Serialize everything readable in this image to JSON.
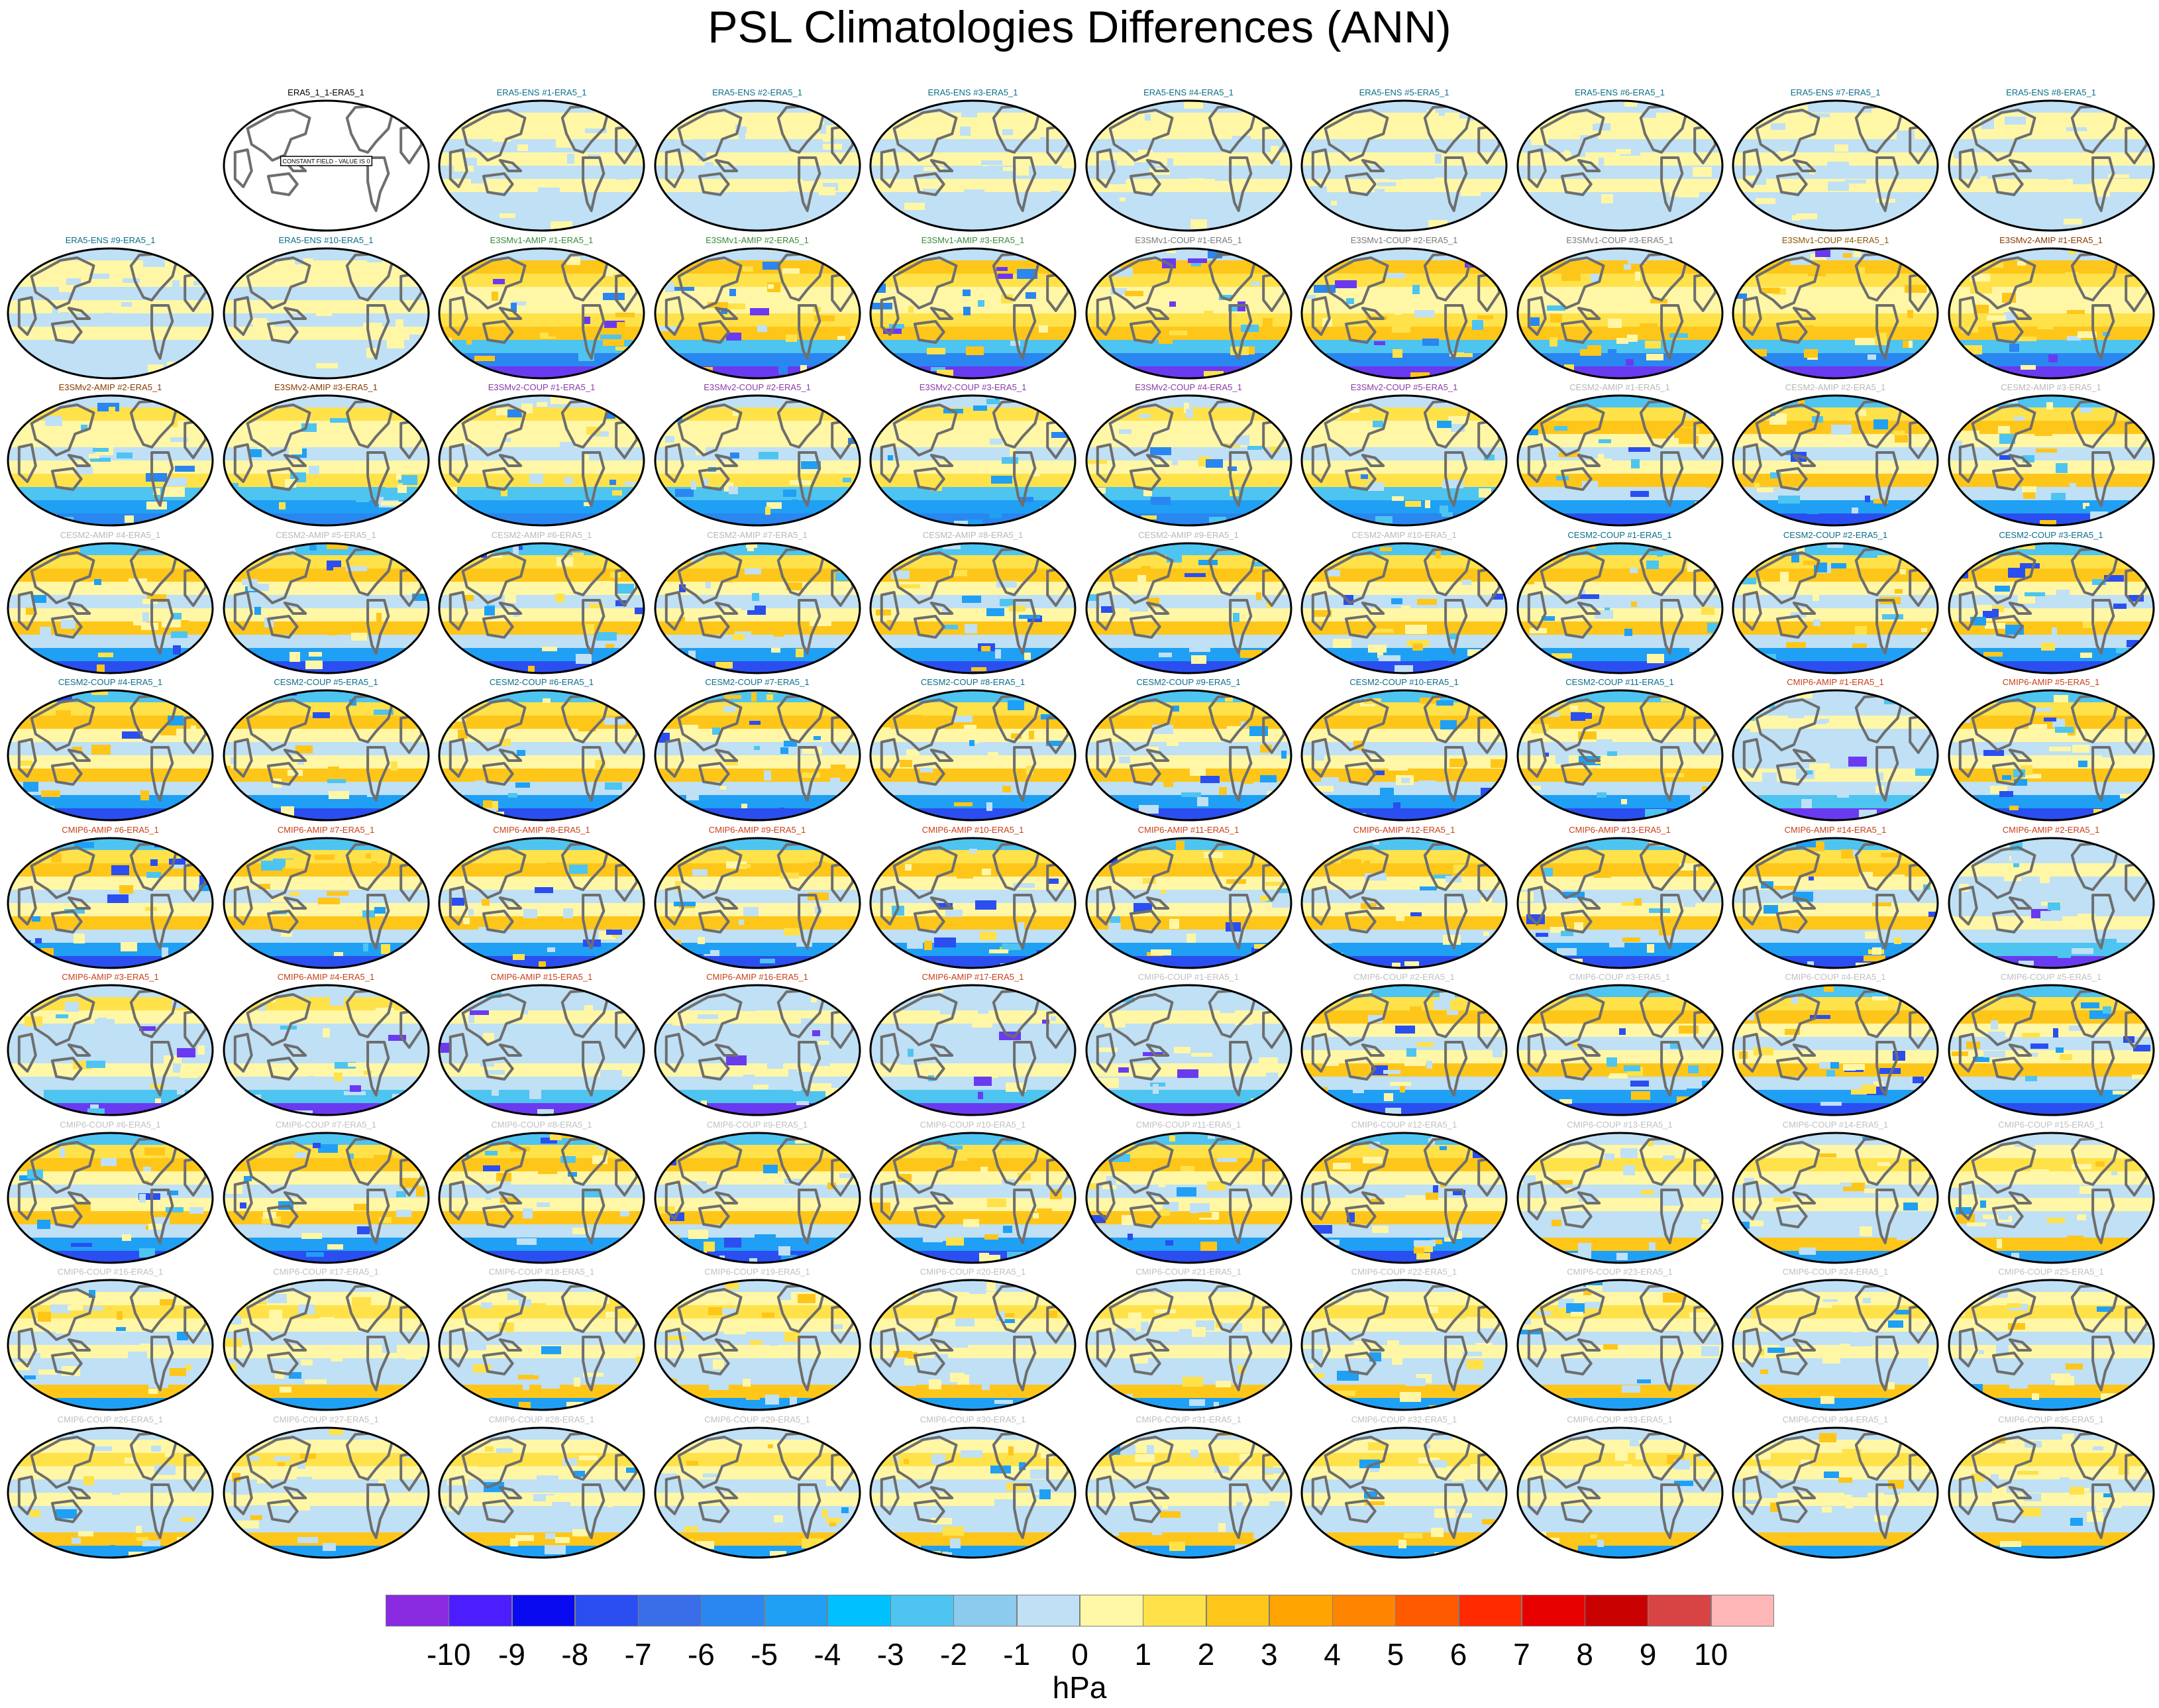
{
  "title": "PSL Climatologies Differences (ANN)",
  "unit_label": "hPa",
  "colorbar": {
    "tick_labels": [
      "-10",
      "-9",
      "-8",
      "-7",
      "-6",
      "-5",
      "-4",
      "-3",
      "-2",
      "-1",
      "0",
      "1",
      "2",
      "3",
      "4",
      "5",
      "6",
      "7",
      "8",
      "9",
      "10"
    ],
    "colors": [
      "#8a2be2",
      "#4b1dff",
      "#0a0af0",
      "#2b4ef0",
      "#3a6de8",
      "#2a86f0",
      "#1fa0f5",
      "#00c0ff",
      "#4ec4f0",
      "#8ccaee",
      "#bfe0f5",
      "#fff7a6",
      "#ffe24a",
      "#ffc61a",
      "#ffa400",
      "#ff8500",
      "#ff5a00",
      "#ff2a00",
      "#e60000",
      "#c80000",
      "#d84444",
      "#ffb6b6"
    ]
  },
  "panels": [
    {
      "label": "ERA5_1_1-ERA5_1",
      "color": "#000000",
      "style": "constant",
      "note": "CONSTANT FIELD - VALUE IS 0"
    },
    {
      "label": "ERA5-ENS    #1-ERA5_1",
      "color": "#0b6e8a",
      "style": "ens"
    },
    {
      "label": "ERA5-ENS    #2-ERA5_1",
      "color": "#0b6e8a",
      "style": "ens"
    },
    {
      "label": "ERA5-ENS    #3-ERA5_1",
      "color": "#0b6e8a",
      "style": "ens"
    },
    {
      "label": "ERA5-ENS    #4-ERA5_1",
      "color": "#0b6e8a",
      "style": "ens"
    },
    {
      "label": "ERA5-ENS    #5-ERA5_1",
      "color": "#0b6e8a",
      "style": "ens"
    },
    {
      "label": "ERA5-ENS    #6-ERA5_1",
      "color": "#0b6e8a",
      "style": "ens"
    },
    {
      "label": "ERA5-ENS    #7-ERA5_1",
      "color": "#0b6e8a",
      "style": "ens"
    },
    {
      "label": "ERA5-ENS    #8-ERA5_1",
      "color": "#0b6e8a",
      "style": "ens"
    },
    {
      "label": "ERA5-ENS    #9-ERA5_1",
      "color": "#0b6e8a",
      "style": "ens"
    },
    {
      "label": "ERA5-ENS    #10-ERA5_1",
      "color": "#0b6e8a",
      "style": "ens"
    },
    {
      "label": "E3SMv1-AMIP #1-ERA5_1",
      "color": "#3a8a3a",
      "style": "e3sm"
    },
    {
      "label": "E3SMv1-AMIP #2-ERA5_1",
      "color": "#3a8a3a",
      "style": "e3sm"
    },
    {
      "label": "E3SMv1-AMIP #3-ERA5_1",
      "color": "#3a8a3a",
      "style": "e3sm"
    },
    {
      "label": "E3SMv1-COUP #1-ERA5_1",
      "color": "#7a7a7a",
      "style": "e3sm"
    },
    {
      "label": "E3SMv1-COUP #2-ERA5_1",
      "color": "#7a7a7a",
      "style": "e3sm"
    },
    {
      "label": "E3SMv1-COUP #3-ERA5_1",
      "color": "#7a7a7a",
      "style": "e3sm"
    },
    {
      "label": "E3SMv1-COUP #4-ERA5_1",
      "color": "#8a5a00",
      "style": "e3sm"
    },
    {
      "label": "E3SMv2-AMIP #1-ERA5_1",
      "color": "#8a3a00",
      "style": "e3sm"
    },
    {
      "label": "E3SMv2-AMIP #2-ERA5_1",
      "color": "#8a3a00",
      "style": "e3sm2"
    },
    {
      "label": "E3SMv2-AMIP #3-ERA5_1",
      "color": "#8a3a00",
      "style": "e3sm2"
    },
    {
      "label": "E3SMv2-COUP #1-ERA5_1",
      "color": "#8a3aa8",
      "style": "e3sm2"
    },
    {
      "label": "E3SMv2-COUP #2-ERA5_1",
      "color": "#8a3aa8",
      "style": "e3sm2"
    },
    {
      "label": "E3SMv2-COUP #3-ERA5_1",
      "color": "#8a3aa8",
      "style": "e3sm2"
    },
    {
      "label": "E3SMv2-COUP #4-ERA5_1",
      "color": "#8a3aa8",
      "style": "e3sm2"
    },
    {
      "label": "E3SMv2-COUP #5-ERA5_1",
      "color": "#8a3aa8",
      "style": "e3sm2"
    },
    {
      "label": "CESM2-AMIP #1-ERA5_1",
      "color": "#b8b8b8",
      "style": "cesm"
    },
    {
      "label": "CESM2-AMIP #2-ERA5_1",
      "color": "#b8b8b8",
      "style": "cesm"
    },
    {
      "label": "CESM2-AMIP #3-ERA5_1",
      "color": "#b8b8b8",
      "style": "cesm"
    },
    {
      "label": "CESM2-AMIP #4-ERA5_1",
      "color": "#b8b8b8",
      "style": "cesm"
    },
    {
      "label": "CESM2-AMIP #5-ERA5_1",
      "color": "#b8b8b8",
      "style": "cesm"
    },
    {
      "label": "CESM2-AMIP #6-ERA5_1",
      "color": "#b8b8b8",
      "style": "cesm"
    },
    {
      "label": "CESM2-AMIP #7-ERA5_1",
      "color": "#b8b8b8",
      "style": "cesm"
    },
    {
      "label": "CESM2-AMIP #8-ERA5_1",
      "color": "#b8b8b8",
      "style": "cesm"
    },
    {
      "label": "CESM2-AMIP #9-ERA5_1",
      "color": "#b8b8b8",
      "style": "cesm"
    },
    {
      "label": "CESM2-AMIP #10-ERA5_1",
      "color": "#b8b8b8",
      "style": "cesm"
    },
    {
      "label": "CESM2-COUP #1-ERA5_1",
      "color": "#0b6e8a",
      "style": "cesm"
    },
    {
      "label": "CESM2-COUP #2-ERA5_1",
      "color": "#0b6e8a",
      "style": "cesm"
    },
    {
      "label": "CESM2-COUP #3-ERA5_1",
      "color": "#0b6e8a",
      "style": "cesm"
    },
    {
      "label": "CESM2-COUP #4-ERA5_1",
      "color": "#0b6e8a",
      "style": "cesm"
    },
    {
      "label": "CESM2-COUP #5-ERA5_1",
      "color": "#0b6e8a",
      "style": "cesm"
    },
    {
      "label": "CESM2-COUP #6-ERA5_1",
      "color": "#0b6e8a",
      "style": "cesm"
    },
    {
      "label": "CESM2-COUP #7-ERA5_1",
      "color": "#0b6e8a",
      "style": "cesm"
    },
    {
      "label": "CESM2-COUP #8-ERA5_1",
      "color": "#0b6e8a",
      "style": "cesm"
    },
    {
      "label": "CESM2-COUP #9-ERA5_1",
      "color": "#0b6e8a",
      "style": "cesm"
    },
    {
      "label": "CESM2-COUP #10-ERA5_1",
      "color": "#0b6e8a",
      "style": "cesm"
    },
    {
      "label": "CESM2-COUP #11-ERA5_1",
      "color": "#0b6e8a",
      "style": "cesm"
    },
    {
      "label": "CMIP6-AMIP #1-ERA5_1",
      "color": "#c8401a",
      "style": "cool"
    },
    {
      "label": "CMIP6-AMIP #5-ERA5_1",
      "color": "#c8401a",
      "style": "cesm"
    },
    {
      "label": "CMIP6-AMIP #6-ERA5_1",
      "color": "#c8401a",
      "style": "cesm"
    },
    {
      "label": "CMIP6-AMIP #7-ERA5_1",
      "color": "#c8401a",
      "style": "cesm"
    },
    {
      "label": "CMIP6-AMIP #8-ERA5_1",
      "color": "#c8401a",
      "style": "cesm"
    },
    {
      "label": "CMIP6-AMIP #9-ERA5_1",
      "color": "#c8401a",
      "style": "cesm"
    },
    {
      "label": "CMIP6-AMIP #10-ERA5_1",
      "color": "#c8401a",
      "style": "cesm"
    },
    {
      "label": "CMIP6-AMIP #11-ERA5_1",
      "color": "#c8401a",
      "style": "cesm"
    },
    {
      "label": "CMIP6-AMIP #12-ERA5_1",
      "color": "#c8401a",
      "style": "cesm"
    },
    {
      "label": "CMIP6-AMIP #13-ERA5_1",
      "color": "#c8401a",
      "style": "cesm"
    },
    {
      "label": "CMIP6-AMIP #14-ERA5_1",
      "color": "#c8401a",
      "style": "cesm"
    },
    {
      "label": "CMIP6-AMIP #2-ERA5_1",
      "color": "#c8401a",
      "style": "cool"
    },
    {
      "label": "CMIP6-AMIP #3-ERA5_1",
      "color": "#c8401a",
      "style": "amip"
    },
    {
      "label": "CMIP6-AMIP #4-ERA5_1",
      "color": "#c8401a",
      "style": "amip"
    },
    {
      "label": "CMIP6-AMIP #15-ERA5_1",
      "color": "#c8401a",
      "style": "cool"
    },
    {
      "label": "CMIP6-AMIP #16-ERA5_1",
      "color": "#c8401a",
      "style": "cool"
    },
    {
      "label": "CMIP6-AMIP #17-ERA5_1",
      "color": "#c8401a",
      "style": "cool"
    },
    {
      "label": "CMIP6-COUP #1-ERA5_1",
      "color": "#c0c0c0",
      "style": "cool"
    },
    {
      "label": "CMIP6-COUP #2-ERA5_1",
      "color": "#c0c0c0",
      "style": "cesm"
    },
    {
      "label": "CMIP6-COUP #3-ERA5_1",
      "color": "#c0c0c0",
      "style": "cesm"
    },
    {
      "label": "CMIP6-COUP #4-ERA5_1",
      "color": "#c0c0c0",
      "style": "cesm"
    },
    {
      "label": "CMIP6-COUP #5-ERA5_1",
      "color": "#c0c0c0",
      "style": "cesm"
    },
    {
      "label": "CMIP6-COUP #6-ERA5_1",
      "color": "#c0c0c0",
      "style": "cesm"
    },
    {
      "label": "CMIP6-COUP #7-ERA5_1",
      "color": "#c0c0c0",
      "style": "cesm"
    },
    {
      "label": "CMIP6-COUP #8-ERA5_1",
      "color": "#c0c0c0",
      "style": "cesm"
    },
    {
      "label": "CMIP6-COUP #9-ERA5_1",
      "color": "#c0c0c0",
      "style": "cesm"
    },
    {
      "label": "CMIP6-COUP #10-ERA5_1",
      "color": "#c0c0c0",
      "style": "cesm"
    },
    {
      "label": "CMIP6-COUP #11-ERA5_1",
      "color": "#c0c0c0",
      "style": "cesm"
    },
    {
      "label": "CMIP6-COUP #12-ERA5_1",
      "color": "#c0c0c0",
      "style": "cesm"
    },
    {
      "label": "CMIP6-COUP #13-ERA5_1",
      "color": "#c0c0c0",
      "style": "coup"
    },
    {
      "label": "CMIP6-COUP #14-ERA5_1",
      "color": "#c0c0c0",
      "style": "coup"
    },
    {
      "label": "CMIP6-COUP #15-ERA5_1",
      "color": "#c0c0c0",
      "style": "coup"
    },
    {
      "label": "CMIP6-COUP #16-ERA5_1",
      "color": "#c0c0c0",
      "style": "coup"
    },
    {
      "label": "CMIP6-COUP #17-ERA5_1",
      "color": "#c0c0c0",
      "style": "coup"
    },
    {
      "label": "CMIP6-COUP #18-ERA5_1",
      "color": "#c0c0c0",
      "style": "coup"
    },
    {
      "label": "CMIP6-COUP #19-ERA5_1",
      "color": "#c0c0c0",
      "style": "coup"
    },
    {
      "label": "CMIP6-COUP #20-ERA5_1",
      "color": "#c0c0c0",
      "style": "coup"
    },
    {
      "label": "CMIP6-COUP #21-ERA5_1",
      "color": "#c0c0c0",
      "style": "coup"
    },
    {
      "label": "CMIP6-COUP #22-ERA5_1",
      "color": "#c0c0c0",
      "style": "coup"
    },
    {
      "label": "CMIP6-COUP #23-ERA5_1",
      "color": "#c0c0c0",
      "style": "coup"
    },
    {
      "label": "CMIP6-COUP #24-ERA5_1",
      "color": "#c0c0c0",
      "style": "coup"
    },
    {
      "label": "CMIP6-COUP #25-ERA5_1",
      "color": "#c0c0c0",
      "style": "coup"
    },
    {
      "label": "CMIP6-COUP #26-ERA5_1",
      "color": "#c0c0c0",
      "style": "coup"
    },
    {
      "label": "CMIP6-COUP #27-ERA5_1",
      "color": "#c0c0c0",
      "style": "coup"
    },
    {
      "label": "CMIP6-COUP #28-ERA5_1",
      "color": "#c0c0c0",
      "style": "coup"
    },
    {
      "label": "CMIP6-COUP #29-ERA5_1",
      "color": "#c0c0c0",
      "style": "coup"
    },
    {
      "label": "CMIP6-COUP #30-ERA5_1",
      "color": "#c0c0c0",
      "style": "coup"
    },
    {
      "label": "CMIP6-COUP #31-ERA5_1",
      "color": "#c0c0c0",
      "style": "coup"
    },
    {
      "label": "CMIP6-COUP #32-ERA5_1",
      "color": "#c0c0c0",
      "style": "coup"
    },
    {
      "label": "CMIP6-COUP #33-ERA5_1",
      "color": "#c0c0c0",
      "style": "coup"
    },
    {
      "label": "CMIP6-COUP #34-ERA5_1",
      "color": "#c0c0c0",
      "style": "coup"
    },
    {
      "label": "CMIP6-COUP #35-ERA5_1",
      "color": "#c0c0c0",
      "style": "coup"
    }
  ]
}
